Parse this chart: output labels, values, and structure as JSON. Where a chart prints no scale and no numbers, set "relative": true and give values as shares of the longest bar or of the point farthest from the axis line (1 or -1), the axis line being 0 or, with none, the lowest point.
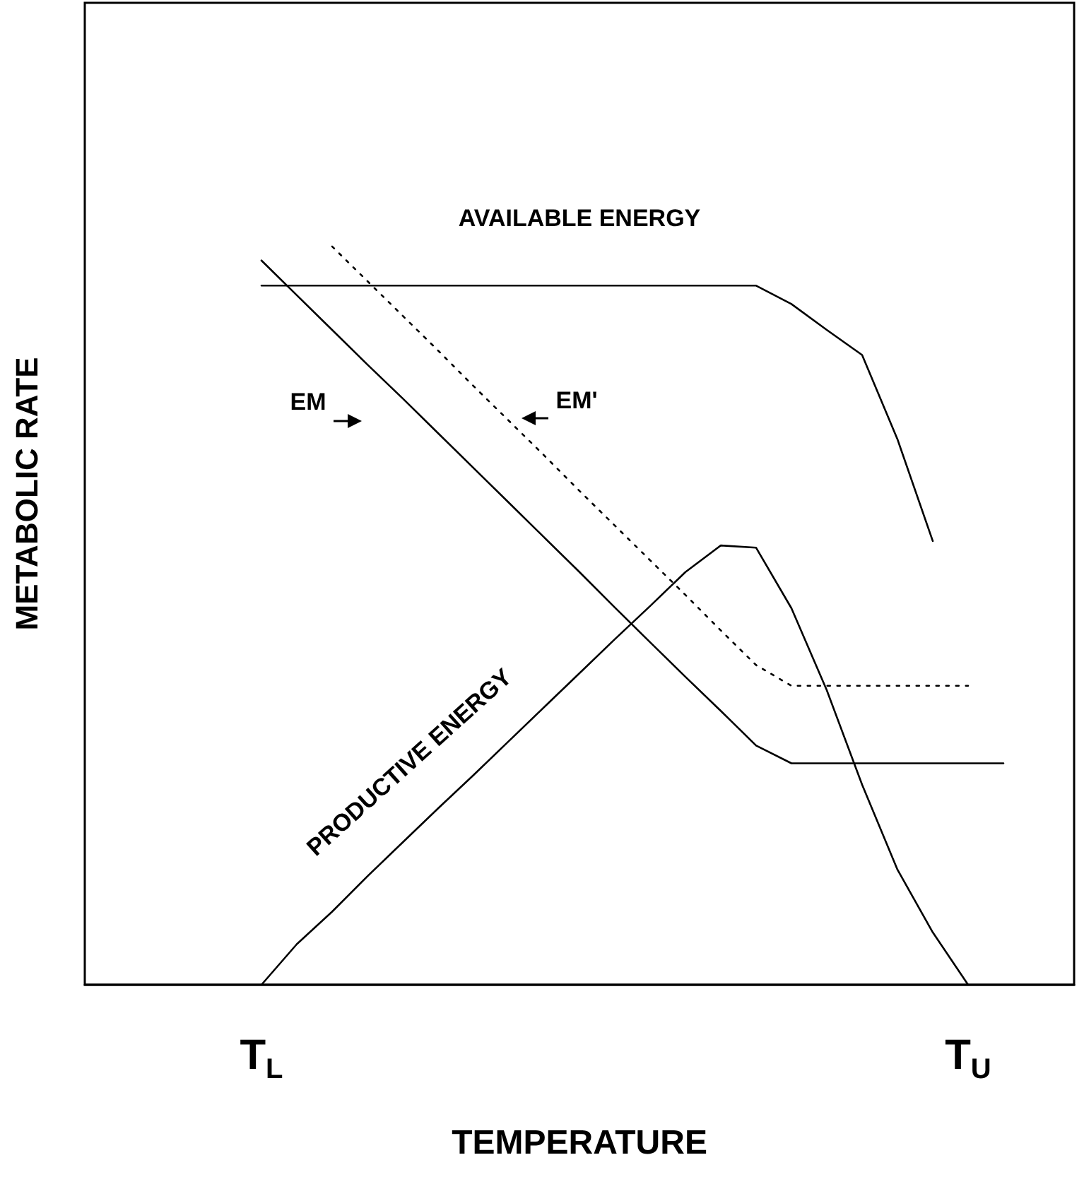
{
  "chart_data": {
    "type": "line",
    "relative": true,
    "xlabel": "TEMPERATURE",
    "ylabel": "METABOLIC RATE",
    "categories": [
      null,
      null,
      null,
      null,
      null,
      "T$_{L}$",
      null,
      null,
      null,
      null,
      null,
      null,
      null,
      null,
      null,
      null,
      null,
      null,
      null,
      null,
      null,
      null,
      null,
      null,
      null,
      "T$_{U}$",
      null,
      null,
      null
    ],
    "grid": false,
    "legend": false,
    "marker": "none",
    "series": [
      {
        "name": "AVAILABLE ENERGY",
        "color": "#000000",
        "line_style": "solid",
        "values": [
          null,
          null,
          null,
          null,
          null,
          0.947,
          0.947,
          0.947,
          0.947,
          0.947,
          0.947,
          0.947,
          0.947,
          0.947,
          0.947,
          0.947,
          0.947,
          0.947,
          0.947,
          0.947,
          0.922,
          0.887,
          0.853,
          0.739,
          0.601,
          null,
          null,
          null,
          null
        ]
      },
      {
        "name": "EM",
        "color": "#000000",
        "line_style": "solid",
        "values": [
          null,
          null,
          null,
          null,
          null,
          0.981,
          0.934,
          0.887,
          0.84,
          0.794,
          0.747,
          0.7,
          0.653,
          0.606,
          0.559,
          0.511,
          0.464,
          0.417,
          0.371,
          0.324,
          0.3,
          0.3,
          0.3,
          0.3,
          0.3,
          0.3,
          0.3,
          null,
          null
        ]
      },
      {
        "name": "EM'",
        "color": "#000000",
        "line_style": "dotted",
        "values": [
          null,
          null,
          null,
          null,
          null,
          null,
          null,
          1.0,
          0.953,
          0.906,
          0.859,
          0.811,
          0.764,
          0.717,
          0.669,
          0.622,
          0.575,
          0.528,
          0.48,
          0.433,
          0.405,
          0.405,
          0.405,
          0.405,
          0.405,
          0.405,
          null,
          null,
          null
        ]
      },
      {
        "name": "PRODUCTIVE ENERGY",
        "color": "#000000",
        "line_style": "solid",
        "values": [
          null,
          null,
          null,
          null,
          null,
          0,
          0.055,
          0.099,
          0.147,
          0.193,
          0.239,
          0.284,
          0.33,
          0.376,
          0.422,
          0.468,
          0.513,
          0.559,
          0.595,
          0.592,
          0.51,
          0.399,
          0.271,
          0.156,
          0.071,
          0,
          null,
          null,
          null
        ]
      }
    ]
  }
}
